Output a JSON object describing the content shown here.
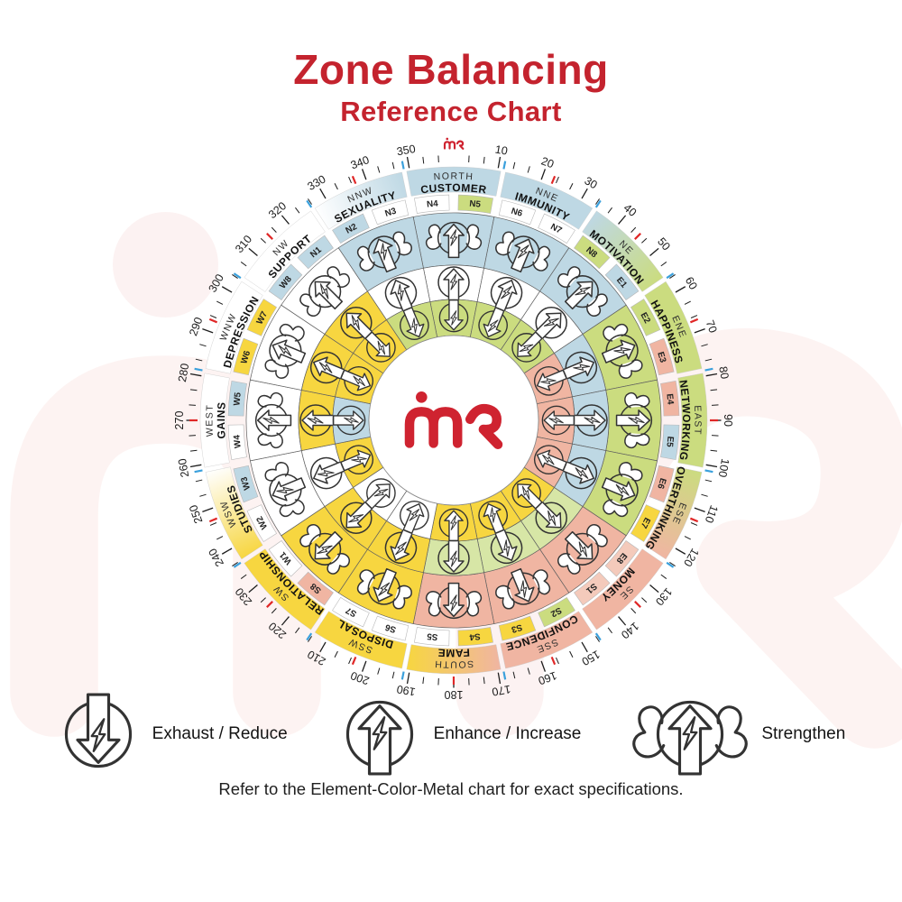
{
  "title": "Zone Balancing",
  "subtitle": "Reference Chart",
  "center_logo": "mR",
  "colors": {
    "title_red": "#c4232e",
    "logo_red": "#cf2330",
    "watermark_pink": "#fbe9e8",
    "blue": "#bed8e4",
    "green": "#cbdc7f",
    "pale_green": "#d7e6a6",
    "yellow": "#f7d640",
    "pink": "#f0b5a2",
    "pale_pink": "#f4cabb",
    "white": "#ffffff",
    "tick_red": "#e02727",
    "tick_blue": "#3aa0dc",
    "ink": "#1d1d1d"
  },
  "wheel": {
    "rings": {
      "outer": "strengthen",
      "middle": "enhance",
      "inner": "exhaust"
    },
    "degree_labels": [
      10,
      20,
      30,
      40,
      50,
      60,
      70,
      80,
      90,
      100,
      110,
      120,
      130,
      140,
      150,
      160,
      170,
      180,
      190,
      200,
      210,
      220,
      230,
      240,
      250,
      260,
      270,
      280,
      290,
      300,
      310,
      320,
      330,
      340,
      350
    ],
    "sectors": [
      {
        "direction": "NORTH",
        "zone": "CUSTOMER",
        "band": "blue",
        "codes": [
          {
            "label": "N4",
            "color": "white"
          },
          {
            "label": "N5",
            "color": "green"
          }
        ],
        "rings": {
          "outer": "blue",
          "middle": "white",
          "inner": "green"
        }
      },
      {
        "direction": "NNE",
        "zone": "IMMUNITY",
        "band": "blue",
        "codes": [
          {
            "label": "N6",
            "color": "white"
          },
          {
            "label": "N7",
            "color": "white"
          }
        ],
        "rings": {
          "outer": "blue",
          "middle": "white",
          "inner": "green"
        }
      },
      {
        "direction": "NE",
        "zone": "MOTIVATION",
        "band": [
          "blue",
          "green"
        ],
        "codes": [
          {
            "label": "N8",
            "color": "green"
          },
          {
            "label": "E1",
            "color": "blue"
          }
        ],
        "rings": {
          "outer": "blue",
          "middle": "white",
          "inner": "green"
        }
      },
      {
        "direction": "ENE",
        "zone": "HAPPINESS",
        "band": "green",
        "codes": [
          {
            "label": "E2",
            "color": "green"
          },
          {
            "label": "E3",
            "color": "pink"
          }
        ],
        "rings": {
          "outer": "green",
          "middle": "blue",
          "inner": "pink"
        }
      },
      {
        "direction": "EAST",
        "zone": "NETWORKING",
        "band": "green",
        "codes": [
          {
            "label": "E4",
            "color": "pink"
          },
          {
            "label": "E5",
            "color": "blue"
          }
        ],
        "rings": {
          "outer": "green",
          "middle": "blue",
          "inner": "pink"
        }
      },
      {
        "direction": "ESE",
        "zone": "OVERTHINKING",
        "band": [
          "green",
          "pink"
        ],
        "codes": [
          {
            "label": "E6",
            "color": "pink"
          },
          {
            "label": "E7",
            "color": "yellow"
          }
        ],
        "rings": {
          "outer": "green",
          "middle": "blue",
          "inner": "pink"
        }
      },
      {
        "direction": "SE",
        "zone": "MONEY",
        "band": "pink",
        "codes": [
          {
            "label": "E8",
            "color": "pale_pink"
          },
          {
            "label": "S1",
            "color": "pale_pink"
          }
        ],
        "rings": {
          "outer": "pink",
          "middle": "pale_green",
          "inner": "yellow"
        }
      },
      {
        "direction": "SSE",
        "zone": "CONFIDENCE",
        "band": "pink",
        "codes": [
          {
            "label": "S2",
            "color": "green"
          },
          {
            "label": "S3",
            "color": "yellow"
          }
        ],
        "rings": {
          "outer": "pink",
          "middle": "pale_green",
          "inner": "yellow"
        }
      },
      {
        "direction": "SOUTH",
        "zone": "FAME",
        "band": [
          "pink",
          "yellow"
        ],
        "codes": [
          {
            "label": "S4",
            "color": "yellow"
          },
          {
            "label": "S5",
            "color": "white"
          }
        ],
        "rings": {
          "outer": "pink",
          "middle": "pale_green",
          "inner": "yellow"
        }
      },
      {
        "direction": "SSW",
        "zone": "DISPOSAL",
        "band": "yellow",
        "codes": [
          {
            "label": "S6",
            "color": "white"
          },
          {
            "label": "S7",
            "color": "white"
          }
        ],
        "rings": {
          "outer": "yellow",
          "middle": "yellow",
          "inner": "white"
        }
      },
      {
        "direction": "SW",
        "zone": "RELATIONSHIP",
        "band": "yellow",
        "codes": [
          {
            "label": "S8",
            "color": "pink"
          },
          {
            "label": "W1",
            "color": "white"
          }
        ],
        "rings": {
          "outer": "yellow",
          "middle": "yellow",
          "inner": "white"
        }
      },
      {
        "direction": "WSW",
        "zone": "STUDIES",
        "band": [
          "yellow",
          "white"
        ],
        "codes": [
          {
            "label": "W2",
            "color": "white"
          },
          {
            "label": "W3",
            "color": "blue"
          }
        ],
        "rings": {
          "outer": "white",
          "middle": "white",
          "inner": "yellow"
        }
      },
      {
        "direction": "WEST",
        "zone": "GAINS",
        "band": "white",
        "codes": [
          {
            "label": "W4",
            "color": "white"
          },
          {
            "label": "W5",
            "color": "blue"
          }
        ],
        "rings": {
          "outer": "white",
          "middle": "yellow",
          "inner": "blue"
        }
      },
      {
        "direction": "WNW",
        "zone": "DEPRESSION",
        "band": "white",
        "codes": [
          {
            "label": "W6",
            "color": "yellow"
          },
          {
            "label": "W7",
            "color": "yellow"
          }
        ],
        "rings": {
          "outer": "white",
          "middle": "yellow",
          "inner": "yellow"
        }
      },
      {
        "direction": "NW",
        "zone": "SUPPORT",
        "band": "white",
        "codes": [
          {
            "label": "W8",
            "color": "blue"
          },
          {
            "label": "N1",
            "color": "blue"
          }
        ],
        "rings": {
          "outer": "white",
          "middle": "yellow",
          "inner": "yellow"
        }
      },
      {
        "direction": "NNW",
        "zone": "SEXUALITY",
        "band": [
          "white",
          "blue"
        ],
        "codes": [
          {
            "label": "N2",
            "color": "blue"
          },
          {
            "label": "N3",
            "color": "white"
          }
        ],
        "rings": {
          "outer": "blue",
          "middle": "white",
          "inner": "green"
        }
      }
    ]
  },
  "legend": {
    "items": [
      {
        "icon": "exhaust",
        "label": "Exhaust / Reduce"
      },
      {
        "icon": "enhance",
        "label": "Enhance / Increase"
      },
      {
        "icon": "strengthen",
        "label": "Strengthen"
      }
    ]
  },
  "footer": "Refer to the Element-Color-Metal chart for exact specifications."
}
